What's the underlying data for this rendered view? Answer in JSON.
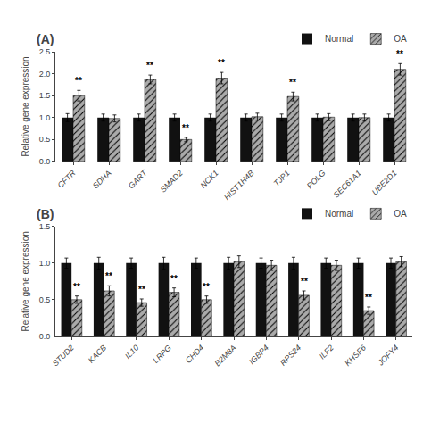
{
  "chart_data": [
    {
      "type": "bar",
      "title": "(A)",
      "categories": [
        "CFTR",
        "SDHA",
        "GART",
        "SMAD2",
        "NCK1",
        "HIST1H4B",
        "TJP1",
        "POLG",
        "SEC61A1",
        "UBE2D1"
      ],
      "series": [
        {
          "name": "Normal",
          "color": "#111111",
          "values": [
            1.0,
            1.0,
            1.0,
            1.0,
            1.0,
            1.0,
            1.0,
            1.0,
            1.0,
            1.0
          ],
          "errors": [
            0.09,
            0.08,
            0.08,
            0.08,
            0.08,
            0.08,
            0.08,
            0.08,
            0.08,
            0.08
          ]
        },
        {
          "name": "OA",
          "color": "#aaaaaa",
          "values": [
            1.5,
            0.98,
            1.87,
            0.5,
            1.9,
            1.02,
            1.48,
            1.01,
            1.0,
            2.1
          ],
          "errors": [
            0.12,
            0.08,
            0.1,
            0.05,
            0.13,
            0.08,
            0.1,
            0.08,
            0.08,
            0.13
          ]
        }
      ],
      "ylabel": "Relative gene expression",
      "ylim": [
        0,
        2.5
      ],
      "yticks": [
        {
          "value": 0,
          "label": "0.0"
        },
        {
          "value": 0.5,
          "label": "0.5"
        },
        {
          "value": 1,
          "label": "1.0"
        },
        {
          "value": 1.5,
          "label": "1.5"
        },
        {
          "value": 2,
          "label": "2.0"
        },
        {
          "value": 2.5,
          "label": "2.5"
        }
      ],
      "annotations": [
        {
          "category": "CFTR",
          "series": "OA",
          "text": "**"
        },
        {
          "category": "GART",
          "series": "OA",
          "text": "**"
        },
        {
          "category": "SMAD2",
          "series": "OA",
          "text": "**"
        },
        {
          "category": "NCK1",
          "series": "OA",
          "text": "**"
        },
        {
          "category": "TJP1",
          "series": "OA",
          "text": "**"
        },
        {
          "category": "UBE2D1",
          "series": "OA",
          "text": "**"
        }
      ],
      "legend": "top",
      "grid": false
    },
    {
      "type": "bar",
      "title": "(B)",
      "categories": [
        "STUD2",
        "KACB",
        "IL10",
        "LRPG",
        "CHD4",
        "B2M8A",
        "IGBP4",
        "RPS24",
        "ILF2",
        "KHSF6",
        "JOFY4"
      ],
      "series": [
        {
          "name": "Normal",
          "color": "#111111",
          "values": [
            1.0,
            1.0,
            1.0,
            1.0,
            1.0,
            1.0,
            1.0,
            1.0,
            1.0,
            1.0,
            1.0
          ],
          "errors": [
            0.07,
            0.08,
            0.07,
            0.08,
            0.07,
            0.08,
            0.07,
            0.08,
            0.07,
            0.07,
            0.07
          ]
        },
        {
          "name": "OA",
          "color": "#aaaaaa",
          "values": [
            0.5,
            0.62,
            0.46,
            0.6,
            0.5,
            1.02,
            0.97,
            0.56,
            0.97,
            0.35,
            1.02
          ],
          "errors": [
            0.05,
            0.07,
            0.05,
            0.06,
            0.05,
            0.08,
            0.07,
            0.06,
            0.07,
            0.05,
            0.07
          ]
        }
      ],
      "ylabel": "Relative gene expression",
      "ylim": [
        0,
        1.5
      ],
      "yticks": [
        {
          "value": 0,
          "label": "0.0"
        },
        {
          "value": 0.5,
          "label": "0.5"
        },
        {
          "value": 1,
          "label": "1.0"
        },
        {
          "value": 1.5,
          "label": "1.5"
        }
      ],
      "annotations": [
        {
          "category": "STUD2",
          "series": "OA",
          "text": "**"
        },
        {
          "category": "KACB",
          "series": "OA",
          "text": "**"
        },
        {
          "category": "IL10",
          "series": "OA",
          "text": "**"
        },
        {
          "category": "LRPG",
          "series": "OA",
          "text": "**"
        },
        {
          "category": "CHD4",
          "series": "OA",
          "text": "**"
        },
        {
          "category": "RPS24",
          "series": "OA",
          "text": "**"
        },
        {
          "category": "KHSF6",
          "series": "OA",
          "text": "**"
        }
      ],
      "legend": "top",
      "grid": false
    }
  ]
}
